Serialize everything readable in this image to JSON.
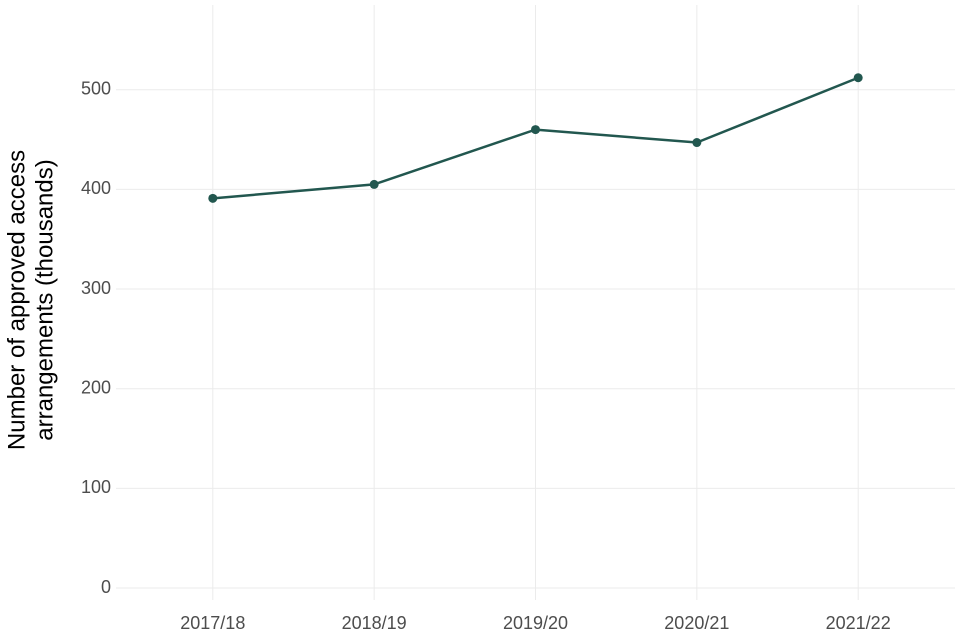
{
  "chart_data": {
    "type": "line",
    "y_label": [
      "Number of approved access",
      "arrangements (thousands)"
    ],
    "categories": [
      "2017/18",
      "2018/19",
      "2019/20",
      "2020/21",
      "2021/22"
    ],
    "series": [
      {
        "color": "#22574f",
        "values": [
          391,
          405,
          460,
          447,
          512
        ]
      }
    ],
    "ylim": [
      -12,
      585
    ],
    "yticks": [
      0,
      100,
      200,
      300,
      400,
      500
    ],
    "grid": true
  }
}
